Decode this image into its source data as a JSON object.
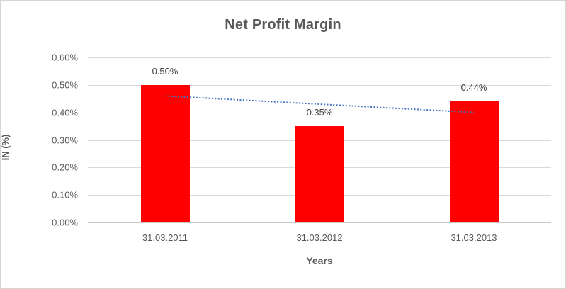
{
  "chart_data": {
    "type": "bar",
    "title": "Net Profit Margin",
    "xlabel": "Years",
    "ylabel": "IN (%)",
    "categories": [
      "31.03.2011",
      "31.03.2012",
      "31.03.2013"
    ],
    "values": [
      0.5,
      0.35,
      0.44
    ],
    "data_labels": [
      "0.50%",
      "0.35%",
      "0.44%"
    ],
    "y_ticks": [
      {
        "label": "0.60%",
        "value": 0.6
      },
      {
        "label": "0.50%",
        "value": 0.5
      },
      {
        "label": "0.40%",
        "value": 0.4
      },
      {
        "label": "0.30%",
        "value": 0.3
      },
      {
        "label": "0.20%",
        "value": 0.2
      },
      {
        "label": "0.10%",
        "value": 0.1
      },
      {
        "label": "0.00%",
        "value": 0.0
      }
    ],
    "ylim": [
      0,
      0.6
    ],
    "grid": true,
    "legend": "none",
    "bar_color": "#ff0000",
    "trendline": {
      "type": "linear",
      "style": "dotted",
      "color": "#4472c4",
      "start_value": 0.46,
      "end_value": 0.4
    },
    "colors": {
      "title_text": "#595959",
      "axis_title_text": "#595959",
      "tick_text": "#595959",
      "data_label_text": "#404040",
      "gridline": "#d9d9d9",
      "axis_line": "#c9c9c9",
      "chart_border": "#d6d6d6"
    }
  }
}
